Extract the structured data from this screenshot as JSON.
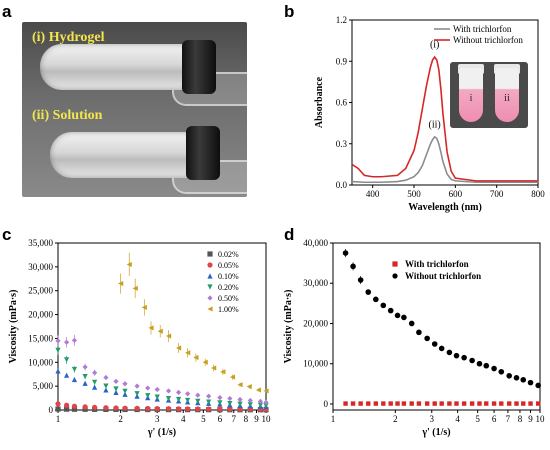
{
  "panels": {
    "a": "a",
    "b": "b",
    "c": "c",
    "d": "d"
  },
  "photo": {
    "top_label": "(i) Hydrogel",
    "bottom_label": "(ii) Solution"
  },
  "inset": {
    "left_tube": "i",
    "right_tube": "ii"
  },
  "colors": {
    "photo_label": "#f2e64d",
    "red": "#d62728",
    "gray": "#8c8c8c"
  },
  "chart_data": [
    {
      "id": "b",
      "type": "line",
      "xlabel": "Wavelength (nm)",
      "ylabel": "Absorbance",
      "xlim": [
        350,
        800
      ],
      "ylim": [
        0,
        1.2
      ],
      "x_ticks": [
        400,
        500,
        600,
        700,
        800
      ],
      "y_ticks": [
        0.0,
        0.3,
        0.6,
        0.9,
        1.2
      ],
      "legend": "top-right",
      "annotations": [
        "(i)",
        "(ii)"
      ],
      "series": [
        {
          "name": "With trichlorfon",
          "color": "#8c8c8c",
          "x": [
            350,
            380,
            420,
            460,
            480,
            500,
            510,
            520,
            530,
            540,
            545,
            550,
            555,
            560,
            565,
            570,
            580,
            590,
            600,
            650,
            700,
            800
          ],
          "y": [
            0.025,
            0.02,
            0.02,
            0.025,
            0.035,
            0.06,
            0.09,
            0.14,
            0.22,
            0.3,
            0.33,
            0.35,
            0.34,
            0.3,
            0.24,
            0.17,
            0.08,
            0.04,
            0.03,
            0.02,
            0.02,
            0.02
          ]
        },
        {
          "name": "Without trichlorfon",
          "color": "#d62728",
          "x": [
            350,
            365,
            380,
            400,
            420,
            460,
            480,
            500,
            510,
            520,
            530,
            540,
            545,
            550,
            555,
            560,
            565,
            570,
            580,
            590,
            600,
            650,
            700,
            800
          ],
          "y": [
            0.15,
            0.12,
            0.07,
            0.06,
            0.06,
            0.07,
            0.12,
            0.25,
            0.38,
            0.55,
            0.72,
            0.86,
            0.91,
            0.93,
            0.91,
            0.84,
            0.7,
            0.52,
            0.24,
            0.1,
            0.05,
            0.03,
            0.03,
            0.03
          ]
        }
      ]
    },
    {
      "id": "c",
      "type": "scatter",
      "xscale": "log",
      "xlabel": "γ' (1/s)",
      "ylabel": "Viscosity (mPa·s)",
      "xlim": [
        1,
        10
      ],
      "ylim": [
        0,
        35000
      ],
      "x_ticks": [
        1,
        2,
        3,
        4,
        5,
        6,
        7,
        8,
        9,
        10
      ],
      "y_ticks": [
        0,
        5000,
        10000,
        15000,
        20000,
        25000,
        30000,
        35000
      ],
      "y_tick_labels": [
        "0",
        "5,000",
        "10,000",
        "15,000",
        "20,000",
        "25,000",
        "30,000",
        "35,000"
      ],
      "legend": "top-right",
      "series": [
        {
          "name": "0.02%",
          "color": "#555555",
          "marker": "square",
          "x": [
            1,
            1.1,
            1.2,
            1.35,
            1.5,
            1.7,
            1.9,
            2.1,
            2.4,
            2.7,
            3,
            3.4,
            3.8,
            4.2,
            4.7,
            5.3,
            6,
            6.7,
            7.5,
            8.4,
            9.4,
            10
          ],
          "y": [
            200,
            180,
            160,
            150,
            140,
            130,
            120,
            110,
            100,
            95,
            90,
            85,
            80,
            75,
            70,
            65,
            60,
            55,
            50,
            50,
            45,
            45
          ]
        },
        {
          "name": "0.05%",
          "color": "#e0454a",
          "marker": "circle",
          "x": [
            1,
            1.1,
            1.2,
            1.35,
            1.5,
            1.7,
            1.9,
            2.1,
            2.4,
            2.7,
            3,
            3.4,
            3.8,
            4.2,
            4.7,
            5.3,
            6,
            6.7,
            7.5,
            8.4,
            9.4,
            10
          ],
          "y": [
            1300,
            1000,
            800,
            650,
            550,
            480,
            420,
            380,
            340,
            310,
            290,
            270,
            250,
            230,
            220,
            210,
            200,
            190,
            180,
            170,
            160,
            150
          ]
        },
        {
          "name": "0.10%",
          "color": "#2a63c9",
          "marker": "triangle-up",
          "x": [
            1,
            1.1,
            1.2,
            1.35,
            1.5,
            1.7,
            1.9,
            2.1,
            2.4,
            2.7,
            3,
            3.4,
            3.8,
            4.2,
            4.7,
            5.3,
            6,
            6.7,
            7.5,
            8.4,
            9.4,
            10
          ],
          "y": [
            8200,
            7300,
            6400,
            5600,
            4800,
            4200,
            3700,
            3300,
            2900,
            2600,
            2300,
            2100,
            1900,
            1700,
            1550,
            1400,
            1250,
            1100,
            1000,
            900,
            800,
            750
          ]
        },
        {
          "name": "0.20%",
          "color": "#1f9e6a",
          "marker": "triangle-down",
          "x": [
            1,
            1.1,
            1.2,
            1.35,
            1.5,
            1.7,
            1.9,
            2.1,
            2.4,
            2.7,
            3,
            3.4,
            3.8,
            4.2,
            4.7,
            5.3,
            6,
            6.7,
            7.5,
            8.4,
            9.4,
            10
          ],
          "y": [
            12500,
            10500,
            8500,
            7000,
            5800,
            5000,
            4400,
            3900,
            3400,
            3000,
            2700,
            2400,
            2200,
            2000,
            1800,
            1650,
            1500,
            1350,
            1200,
            1100,
            1000,
            900
          ]
        },
        {
          "name": "0.50%",
          "color": "#b27ad6",
          "marker": "diamond",
          "x": [
            1,
            1.1,
            1.2,
            1.35,
            1.5,
            1.7,
            1.9,
            2.1,
            2.4,
            2.7,
            3,
            3.4,
            3.8,
            4.2,
            4.7,
            5.3,
            6,
            6.7,
            7.5,
            8.4,
            9.4,
            10
          ],
          "y": [
            14500,
            14200,
            14600,
            9000,
            7800,
            6800,
            6000,
            5500,
            5000,
            4600,
            4300,
            4000,
            3700,
            3400,
            3100,
            2900,
            2600,
            2400,
            2200,
            2000,
            1800,
            1600
          ]
        },
        {
          "name": "1.00%",
          "color": "#c8a020",
          "marker": "triangle-left",
          "x": [
            2,
            2.2,
            2.35,
            2.6,
            2.8,
            3.1,
            3.4,
            3.8,
            4.2,
            4.6,
            5.1,
            5.6,
            6.2,
            6.9,
            7.5,
            8.3,
            9.2,
            10
          ],
          "y": [
            26500,
            30500,
            25500,
            21500,
            17200,
            16500,
            15500,
            13000,
            12000,
            11000,
            10000,
            8800,
            8000,
            6900,
            5300,
            4900,
            4200,
            4000
          ]
        }
      ]
    },
    {
      "id": "d",
      "type": "scatter",
      "xscale": "log",
      "xlabel": "γ' (1/s)",
      "ylabel": "Viscosity (mPa·s)",
      "xlim": [
        1,
        10
      ],
      "ylim": [
        -1500,
        40000
      ],
      "x_ticks": [
        1,
        2,
        3,
        4,
        5,
        6,
        7,
        8,
        9,
        10
      ],
      "y_ticks": [
        0,
        10000,
        20000,
        30000,
        40000
      ],
      "y_tick_labels": [
        "0",
        "10,000",
        "20,000",
        "30,000",
        "40,000"
      ],
      "legend": "top-right",
      "series": [
        {
          "name": "With trichlorfon",
          "color": "#d62728",
          "marker": "square",
          "x": [
            1.15,
            1.25,
            1.36,
            1.48,
            1.61,
            1.75,
            1.9,
            2.05,
            2.2,
            2.4,
            2.6,
            2.85,
            3.1,
            3.35,
            3.65,
            3.95,
            4.3,
            4.7,
            5.1,
            5.5,
            6,
            6.5,
            7.1,
            7.7,
            8.3,
            9,
            9.8
          ],
          "y": [
            100,
            100,
            100,
            100,
            100,
            100,
            100,
            100,
            100,
            100,
            100,
            100,
            100,
            100,
            100,
            100,
            100,
            100,
            100,
            100,
            100,
            100,
            100,
            100,
            100,
            100,
            100
          ]
        },
        {
          "name": "Without trichlorfon",
          "color": "#000000",
          "marker": "circle",
          "x": [
            1.15,
            1.25,
            1.36,
            1.48,
            1.61,
            1.75,
            1.9,
            2.05,
            2.2,
            2.4,
            2.6,
            2.85,
            3.1,
            3.35,
            3.65,
            3.95,
            4.3,
            4.7,
            5.1,
            5.5,
            6,
            6.5,
            7.1,
            7.7,
            8.3,
            9,
            9.8
          ],
          "y": [
            37500,
            34200,
            30800,
            27800,
            26000,
            24500,
            23200,
            22000,
            21500,
            20000,
            17800,
            16300,
            14900,
            13800,
            12800,
            12000,
            11500,
            10800,
            10000,
            9500,
            8800,
            8000,
            7000,
            6500,
            6000,
            5300,
            4600
          ]
        }
      ]
    }
  ]
}
